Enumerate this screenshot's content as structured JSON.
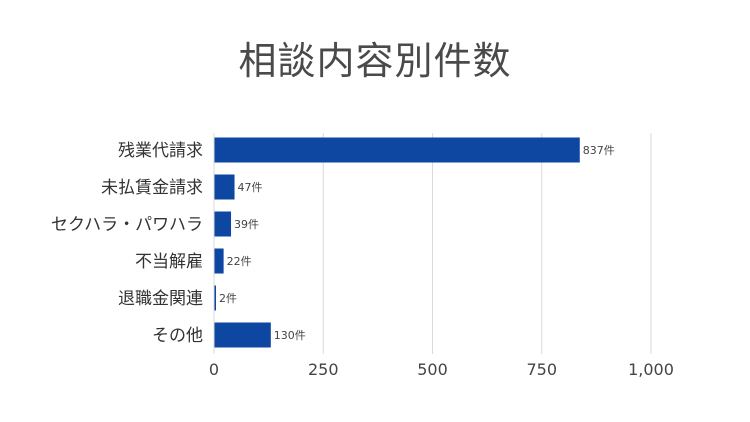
{
  "chart_data": {
    "type": "bar",
    "orientation": "horizontal",
    "title": "相談内容別件数",
    "categories": [
      "残業代請求",
      "未払賃金請求",
      "セクハラ・パワハラ",
      "不当解雇",
      "退職金関連",
      "その他"
    ],
    "values": [
      837,
      47,
      39,
      22,
      2,
      130
    ],
    "data_labels": [
      "837件",
      "47件",
      "39件",
      "22件",
      "2件",
      "130件"
    ],
    "x_ticks": [
      0,
      250,
      500,
      750,
      1000
    ],
    "x_tick_labels": [
      "0",
      "250",
      "500",
      "750",
      "1,000"
    ],
    "xlim": [
      0,
      1000
    ],
    "xlabel": "",
    "ylabel": "",
    "grid": "vertical",
    "legend": "none",
    "bar_color": "#0d47a1",
    "grid_color": "#d9d9d9"
  }
}
